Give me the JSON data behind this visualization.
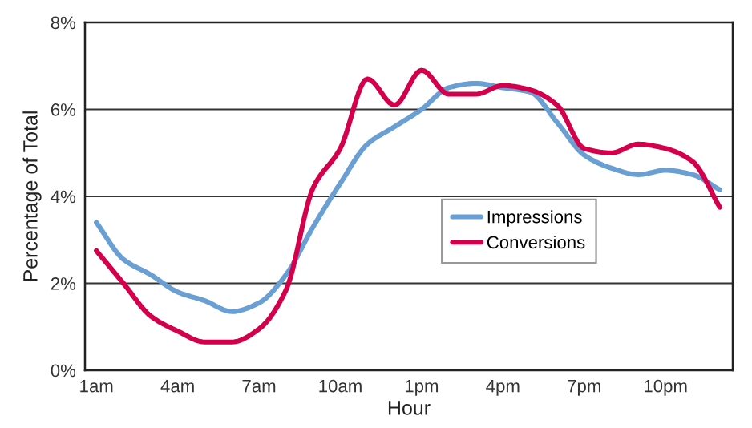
{
  "chart_data": {
    "type": "line",
    "xlabel": "Hour",
    "ylabel": "Percentage of Total",
    "categories": [
      "1am",
      null,
      null,
      "4am",
      null,
      null,
      "7am",
      null,
      null,
      "10am",
      null,
      null,
      "1pm",
      null,
      null,
      "4pm",
      null,
      null,
      "7pm",
      null,
      null,
      "10pm",
      null,
      null
    ],
    "ylim": [
      0,
      8
    ],
    "yticks": [
      {
        "value": 0,
        "label": "0%"
      },
      {
        "value": 2,
        "label": "2%"
      },
      {
        "value": 4,
        "label": "4%"
      },
      {
        "value": 6,
        "label": "6%"
      },
      {
        "value": 8,
        "label": "8%"
      }
    ],
    "grid": "y",
    "legend": "center right",
    "marker": "none",
    "line_style": "solid",
    "series": [
      {
        "name": "Impressions",
        "color": "#6a9fd4",
        "values": [
          3.4,
          2.55,
          2.2,
          1.8,
          1.6,
          1.35,
          1.55,
          2.2,
          3.3,
          4.3,
          5.2,
          5.6,
          6.0,
          6.5,
          6.6,
          6.5,
          6.4,
          5.7,
          4.95,
          4.65,
          4.5,
          4.6,
          4.5,
          4.15
        ]
      },
      {
        "name": "Conversions",
        "color": "#d4004b",
        "values": [
          2.75,
          2.0,
          1.25,
          0.9,
          0.65,
          0.65,
          0.95,
          1.85,
          4.2,
          5.1,
          6.7,
          6.1,
          6.9,
          6.35,
          6.35,
          6.55,
          6.45,
          6.1,
          5.1,
          5.0,
          5.2,
          5.1,
          4.8,
          3.75
        ]
      }
    ]
  }
}
